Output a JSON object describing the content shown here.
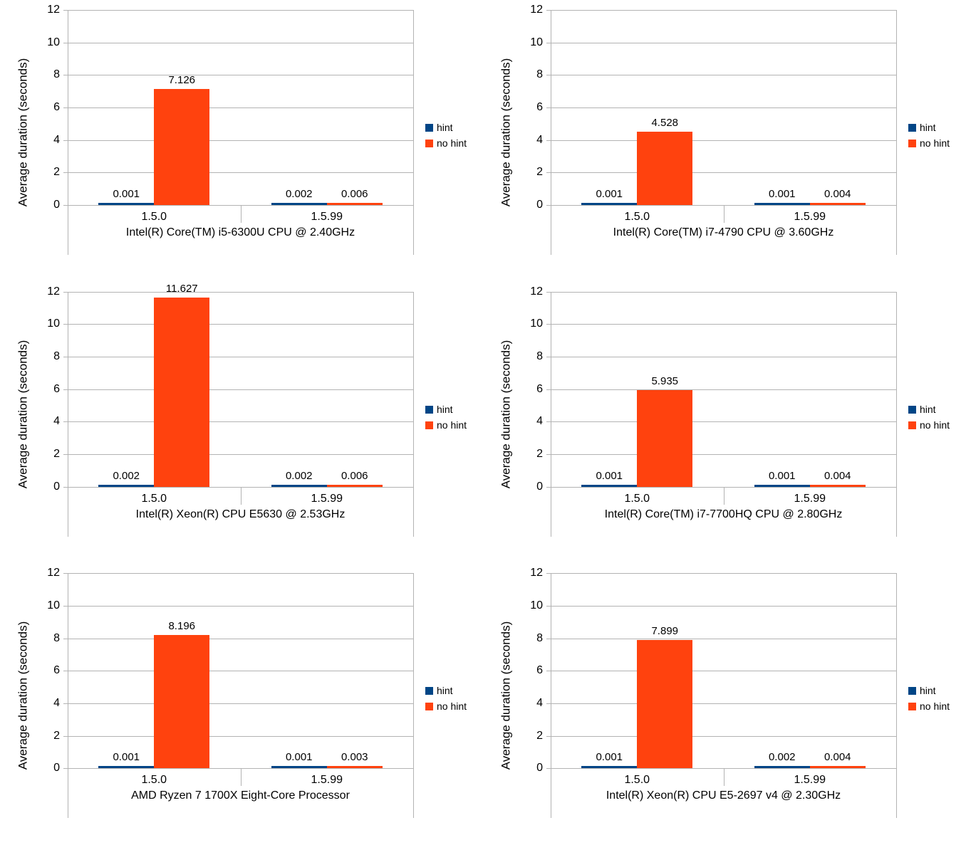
{
  "ylabel": "Average duration (seconds)",
  "yticks": [
    0,
    2,
    4,
    6,
    8,
    10,
    12
  ],
  "ylim": [
    0,
    12
  ],
  "categories": [
    "1.5.0",
    "1.5.99"
  ],
  "legend": [
    {
      "label": "hint",
      "color": "#004586"
    },
    {
      "label": "no hint",
      "color": "#ff420e"
    }
  ],
  "colors": {
    "hint": "#004586",
    "no_hint": "#ff420e",
    "grid": "#b3b3b3",
    "text": "#000000",
    "background": "#ffffff"
  },
  "chart_data": [
    {
      "type": "bar",
      "axis_title": "Intel(R) Core(TM) i5-6300U CPU @ 2.40GHz",
      "categories": [
        "1.5.0",
        "1.5.99"
      ],
      "series": [
        {
          "name": "hint",
          "color": "#004586",
          "values": [
            0.001,
            0.002
          ],
          "labels": [
            "0.001",
            "0.002"
          ]
        },
        {
          "name": "no hint",
          "color": "#ff420e",
          "values": [
            7.126,
            0.006
          ],
          "labels": [
            "7.126",
            "0.006"
          ]
        }
      ],
      "ylabel": "Average duration (seconds)",
      "ylim": [
        0,
        12
      ]
    },
    {
      "type": "bar",
      "axis_title": "Intel(R) Core(TM) i7-4790 CPU @ 3.60GHz",
      "categories": [
        "1.5.0",
        "1.5.99"
      ],
      "series": [
        {
          "name": "hint",
          "color": "#004586",
          "values": [
            0.001,
            0.001
          ],
          "labels": [
            "0.001",
            "0.001"
          ]
        },
        {
          "name": "no hint",
          "color": "#ff420e",
          "values": [
            4.528,
            0.004
          ],
          "labels": [
            "4.528",
            "0.004"
          ]
        }
      ],
      "ylabel": "Average duration (seconds)",
      "ylim": [
        0,
        12
      ]
    },
    {
      "type": "bar",
      "axis_title": "Intel(R) Xeon(R) CPU E5630 @ 2.53GHz",
      "categories": [
        "1.5.0",
        "1.5.99"
      ],
      "series": [
        {
          "name": "hint",
          "color": "#004586",
          "values": [
            0.002,
            0.002
          ],
          "labels": [
            "0.002",
            "0.002"
          ]
        },
        {
          "name": "no hint",
          "color": "#ff420e",
          "values": [
            11.627,
            0.006
          ],
          "labels": [
            "11.627",
            "0.006"
          ]
        }
      ],
      "ylabel": "Average duration (seconds)",
      "ylim": [
        0,
        12
      ]
    },
    {
      "type": "bar",
      "axis_title": "Intel(R) Core(TM) i7-7700HQ CPU @ 2.80GHz",
      "categories": [
        "1.5.0",
        "1.5.99"
      ],
      "series": [
        {
          "name": "hint",
          "color": "#004586",
          "values": [
            0.001,
            0.001
          ],
          "labels": [
            "0.001",
            "0.001"
          ]
        },
        {
          "name": "no hint",
          "color": "#ff420e",
          "values": [
            5.935,
            0.004
          ],
          "labels": [
            "5.935",
            "0.004"
          ]
        }
      ],
      "ylabel": "Average duration (seconds)",
      "ylim": [
        0,
        12
      ]
    },
    {
      "type": "bar",
      "axis_title": "AMD Ryzen 7 1700X Eight-Core Processor",
      "categories": [
        "1.5.0",
        "1.5.99"
      ],
      "series": [
        {
          "name": "hint",
          "color": "#004586",
          "values": [
            0.001,
            0.001
          ],
          "labels": [
            "0.001",
            "0.001"
          ]
        },
        {
          "name": "no hint",
          "color": "#ff420e",
          "values": [
            8.196,
            0.003
          ],
          "labels": [
            "8.196",
            "0.003"
          ]
        }
      ],
      "ylabel": "Average duration (seconds)",
      "ylim": [
        0,
        12
      ]
    },
    {
      "type": "bar",
      "axis_title": "Intel(R) Xeon(R) CPU E5-2697 v4 @ 2.30GHz",
      "categories": [
        "1.5.0",
        "1.5.99"
      ],
      "series": [
        {
          "name": "hint",
          "color": "#004586",
          "values": [
            0.001,
            0.002
          ],
          "labels": [
            "0.001",
            "0.002"
          ]
        },
        {
          "name": "no hint",
          "color": "#ff420e",
          "values": [
            7.899,
            0.004
          ],
          "labels": [
            "7.899",
            "0.004"
          ]
        }
      ],
      "ylabel": "Average duration (seconds)",
      "ylim": [
        0,
        12
      ]
    }
  ]
}
